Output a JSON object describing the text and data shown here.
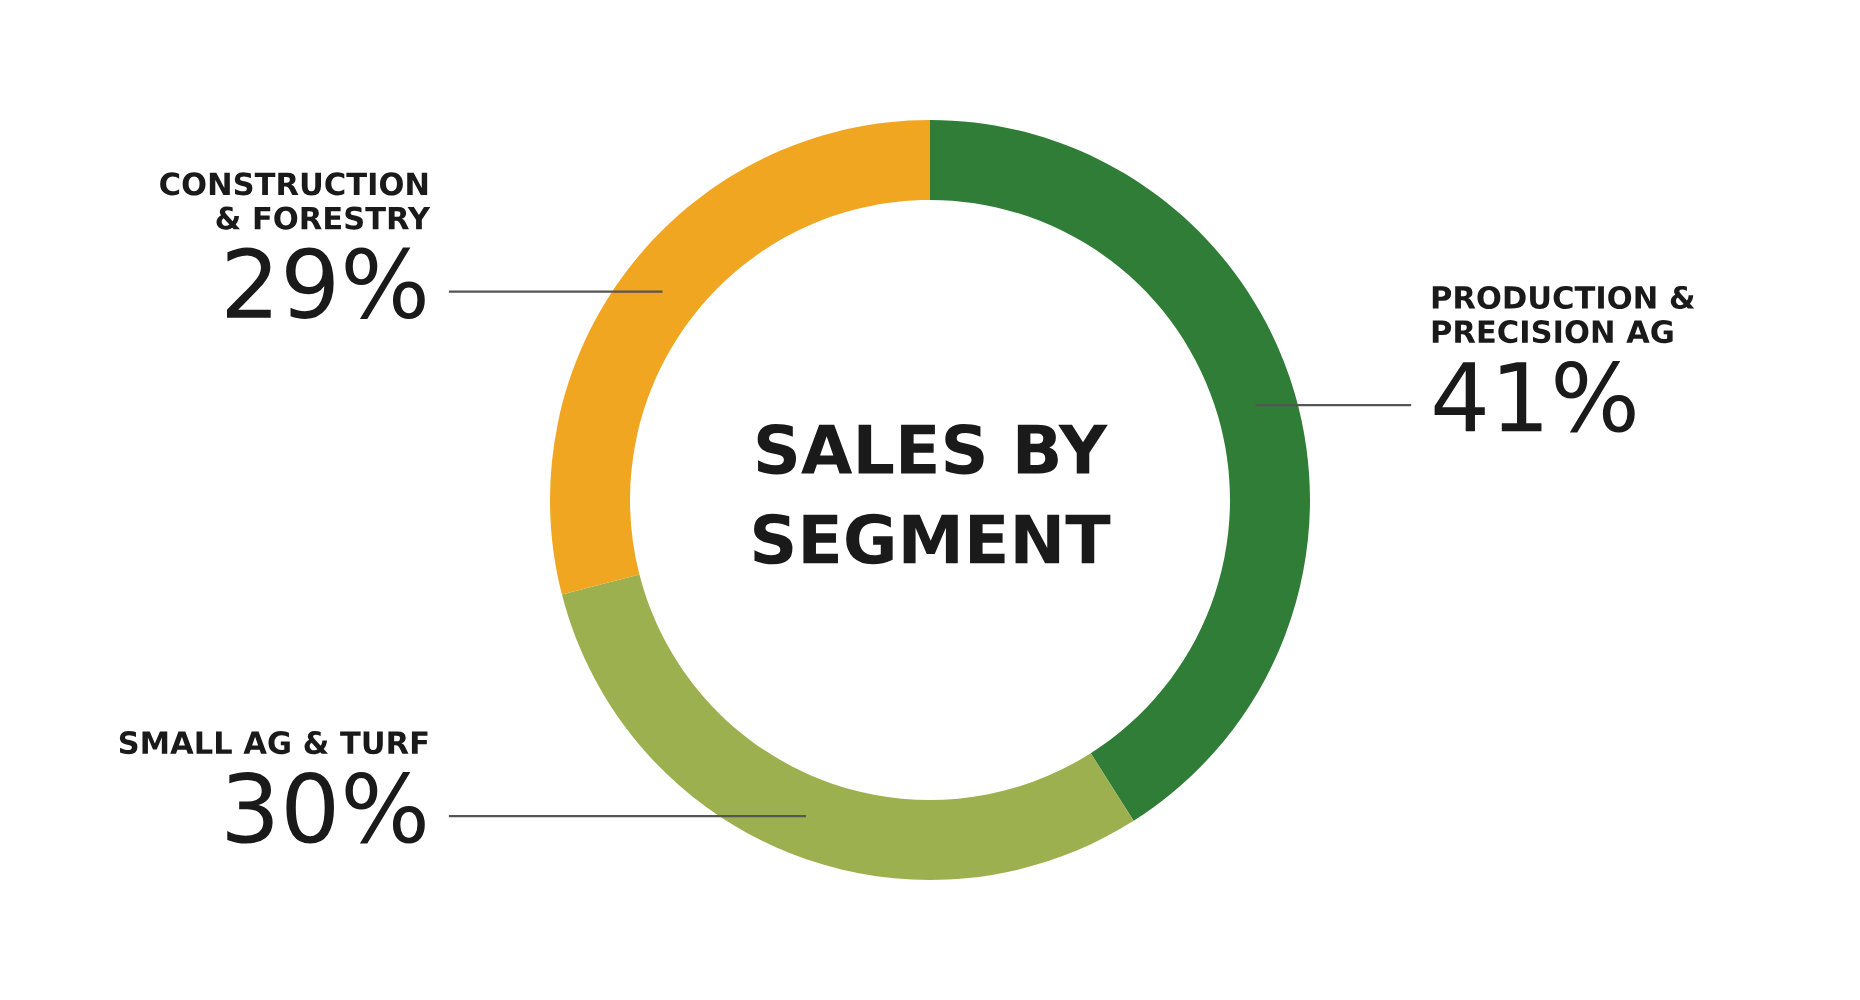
{
  "chart_data": {
    "type": "donut",
    "title": "SALES BY\nSEGMENT",
    "categories": [
      "PRODUCTION &\nPRECISION AG",
      "SMALL AG & TURF",
      "CONSTRUCTION\n& FORESTRY"
    ],
    "values": [
      41,
      30,
      29
    ],
    "colors": [
      "#2f7d36",
      "#9db050",
      "#f1a621"
    ],
    "value_labels": [
      "41%",
      "30%",
      "29%"
    ],
    "legend": false
  }
}
